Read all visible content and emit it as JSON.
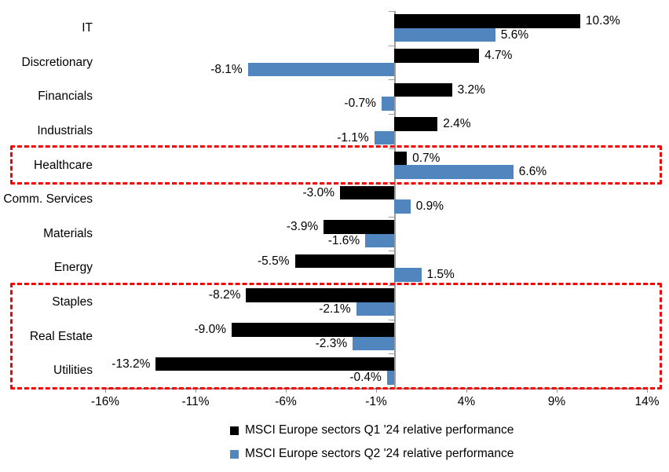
{
  "chart_data": {
    "type": "bar",
    "orientation": "horizontal",
    "title": "",
    "xlabel": "",
    "ylabel": "",
    "grid": false,
    "legend_position": "bottom",
    "categories": [
      "IT",
      "Discretionary",
      "Financials",
      "Industrials",
      "Healthcare",
      "Comm. Services",
      "Materials",
      "Energy",
      "Staples",
      "Real Estate",
      "Utilities"
    ],
    "series": [
      {
        "name": "MSCI Europe sectors Q1 '24 relative performance",
        "color": "#000000",
        "values": [
          10.3,
          4.7,
          3.2,
          2.4,
          0.7,
          -3.0,
          -3.9,
          -5.5,
          -8.2,
          -9.0,
          -13.2
        ]
      },
      {
        "name": "MSCI Europe sectors Q2 '24 relative performance",
        "color": "#5185BE",
        "values": [
          5.6,
          -8.1,
          -0.7,
          -1.1,
          6.6,
          0.9,
          -1.6,
          1.5,
          -2.1,
          -2.3,
          -0.4
        ]
      }
    ],
    "value_label_suffix": "%",
    "xlim": [
      -16,
      14
    ],
    "x_ticks": [
      {
        "value": -16,
        "label": "-16%"
      },
      {
        "value": -11,
        "label": "-11%"
      },
      {
        "value": -6,
        "label": "-6%"
      },
      {
        "value": -1,
        "label": "-1%"
      },
      {
        "value": 4,
        "label": "4%"
      },
      {
        "value": 9,
        "label": "9%"
      },
      {
        "value": 14,
        "label": "14%"
      }
    ],
    "axis_color": "#9B9B9B",
    "highlight_color": "#F40000",
    "highlights": [
      {
        "name": "healthcare-highlight-box",
        "categories": [
          "Healthcare"
        ]
      },
      {
        "name": "defensive-sectors-highlight-box",
        "categories": [
          "Staples",
          "Real Estate",
          "Utilities"
        ]
      }
    ]
  }
}
